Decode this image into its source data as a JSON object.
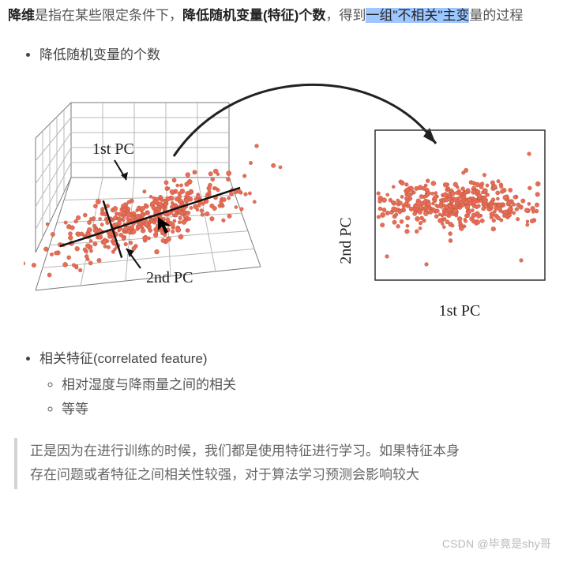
{
  "intro": {
    "prefix_bold": "降维",
    "mid_plain": "是指在某些限定条件下，",
    "mid_bold": "降低随机变量(特征)个数",
    "after_bold": "，得到",
    "highlighted": "一组\"不相关\"主变",
    "tail": "量的过程"
  },
  "bullet_top": "降低随机变量的个数",
  "diagram": {
    "arrow_color": "#222222",
    "grid_color": "#7a7a7a",
    "grid_light": "#b8b8b8",
    "point_fill": "#e86d56",
    "point_stroke": "rgba(160,60,40,0.55)",
    "pc_line_color": "#111111",
    "plot3d": {
      "label_1st": "1st PC",
      "label_2nd": "2nd PC"
    },
    "plot2d": {
      "xlabel": "1st PC",
      "ylabel": "2nd PC",
      "border_color": "#333333"
    }
  },
  "bullets_bottom": {
    "main": "相关特征(correlated feature)",
    "sub1": "相对湿度与降雨量之间的相关",
    "sub2": "等等"
  },
  "quote": {
    "line1": "正是因为在进行训练的时候，我们都是使用特征进行学习。如果特征本身",
    "line2": "存在问题或者特征之间相关性较强，对于算法学习预测会影响较大"
  },
  "watermark": "CSDN @毕竟是shy哥"
}
